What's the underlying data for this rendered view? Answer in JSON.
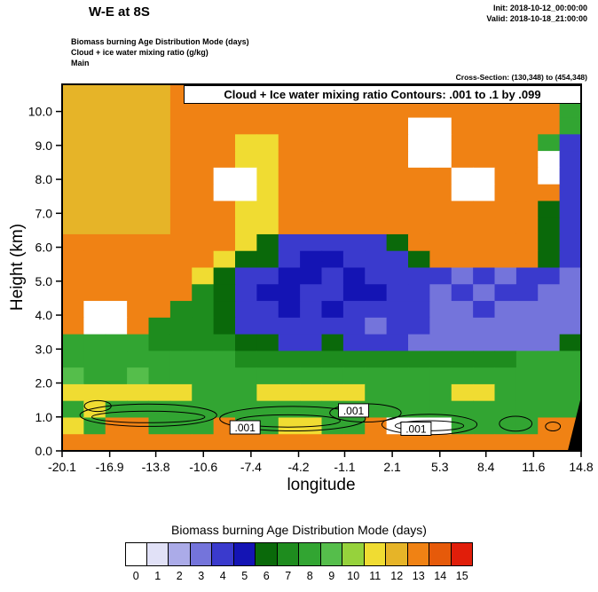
{
  "header": {
    "title": "W-E at 8S",
    "init_line": "Init: 2018-10-12_00:00:00",
    "valid_line": "Valid: 2018-10-18_21:00:00",
    "field_lines": [
      "Biomass burning Age Distribution Mode   (days)",
      "Cloud + ice water mixing ratio   (g/kg)",
      "Main"
    ],
    "cross_section": "Cross-Section: (130,348) to (454,348)"
  },
  "plot": {
    "contour_banner": "Cloud + Ice water mixing ratio Contours: .001 to .1 by .099",
    "xlabel": "longitude",
    "ylabel": "Height (km)"
  },
  "chart_data": {
    "type": "heatmap",
    "title": "W-E at 8S",
    "fill_variable": "Biomass burning Age Distribution Mode (days)",
    "contour_variable": "Cloud + Ice water mixing ratio (g/kg)",
    "contour_levels": ".001 to .1 by .099",
    "xlabel": "longitude",
    "ylabel": "Height (km)",
    "xlim": [
      -20.1,
      14.8
    ],
    "ylim": [
      0,
      10.8
    ],
    "x_ticks": [
      -20.1,
      -16.9,
      -13.8,
      -10.6,
      -7.4,
      -4.2,
      -1.1,
      2.1,
      5.3,
      8.4,
      11.6,
      14.8
    ],
    "y_ticks": [
      0,
      1,
      2,
      3,
      4,
      5,
      6,
      7,
      8,
      9,
      10
    ],
    "levels": [
      0,
      1,
      2,
      3,
      4,
      5,
      6,
      7,
      8,
      9,
      10,
      11,
      12,
      13,
      14,
      15
    ],
    "palette": [
      "#FFFFFF",
      "#E1E1F7",
      "#ABABE8",
      "#7474DB",
      "#3A3ACD",
      "#1414B4",
      "#0A690A",
      "#1E8C1E",
      "#32A532",
      "#55BE4B",
      "#96D23C",
      "#F0DC32",
      "#E6B428",
      "#F08214",
      "#E65A0A",
      "#E11E0A"
    ],
    "grid": {
      "ncols": 24,
      "nrows": 22,
      "order": "top-to-bottom",
      "values": [
        [
          12,
          12,
          12,
          12,
          12,
          13,
          13,
          13,
          13,
          13,
          13,
          13,
          13,
          13,
          13,
          13,
          13,
          13,
          13,
          13,
          13,
          13,
          13,
          13
        ],
        [
          12,
          12,
          12,
          12,
          12,
          13,
          13,
          13,
          13,
          13,
          13,
          13,
          13,
          13,
          13,
          13,
          13,
          13,
          13,
          13,
          13,
          13,
          13,
          8
        ],
        [
          12,
          12,
          12,
          12,
          12,
          13,
          13,
          13,
          13,
          13,
          13,
          13,
          13,
          13,
          13,
          13,
          0,
          0,
          13,
          13,
          13,
          13,
          13,
          8
        ],
        [
          12,
          12,
          12,
          12,
          12,
          13,
          13,
          13,
          11,
          11,
          13,
          13,
          13,
          13,
          13,
          13,
          0,
          0,
          13,
          13,
          13,
          13,
          8,
          4
        ],
        [
          12,
          12,
          12,
          12,
          12,
          13,
          13,
          13,
          11,
          11,
          13,
          13,
          13,
          13,
          13,
          13,
          0,
          0,
          13,
          13,
          13,
          13,
          0,
          4
        ],
        [
          12,
          12,
          12,
          12,
          12,
          13,
          13,
          0,
          0,
          11,
          13,
          13,
          13,
          13,
          13,
          13,
          13,
          13,
          0,
          0,
          13,
          13,
          0,
          4
        ],
        [
          12,
          12,
          12,
          12,
          12,
          13,
          13,
          0,
          0,
          11,
          13,
          13,
          13,
          13,
          13,
          13,
          13,
          13,
          0,
          0,
          13,
          13,
          13,
          4
        ],
        [
          12,
          12,
          12,
          12,
          12,
          13,
          13,
          13,
          11,
          11,
          13,
          13,
          13,
          13,
          13,
          13,
          13,
          13,
          13,
          13,
          13,
          13,
          6,
          4
        ],
        [
          12,
          12,
          12,
          12,
          12,
          13,
          13,
          13,
          11,
          11,
          13,
          13,
          13,
          13,
          13,
          13,
          13,
          13,
          13,
          13,
          13,
          13,
          6,
          4
        ],
        [
          13,
          13,
          13,
          13,
          13,
          13,
          13,
          13,
          11,
          6,
          4,
          4,
          4,
          4,
          4,
          6,
          13,
          13,
          13,
          13,
          13,
          13,
          6,
          4
        ],
        [
          13,
          13,
          13,
          13,
          13,
          13,
          13,
          11,
          6,
          6,
          4,
          5,
          5,
          4,
          4,
          4,
          6,
          13,
          13,
          13,
          13,
          13,
          6,
          4
        ],
        [
          13,
          13,
          13,
          13,
          13,
          13,
          11,
          6,
          4,
          4,
          5,
          5,
          4,
          5,
          4,
          4,
          4,
          4,
          3,
          4,
          3,
          4,
          4,
          3
        ],
        [
          13,
          13,
          13,
          13,
          13,
          13,
          7,
          6,
          4,
          5,
          5,
          4,
          4,
          5,
          5,
          4,
          4,
          3,
          4,
          3,
          4,
          4,
          3,
          3
        ],
        [
          13,
          0,
          0,
          13,
          13,
          7,
          7,
          6,
          4,
          4,
          5,
          4,
          5,
          4,
          4,
          4,
          4,
          3,
          3,
          4,
          3,
          3,
          3,
          3
        ],
        [
          13,
          0,
          0,
          13,
          7,
          7,
          7,
          6,
          4,
          4,
          4,
          4,
          4,
          4,
          3,
          4,
          4,
          3,
          3,
          3,
          3,
          3,
          3,
          3
        ],
        [
          8,
          8,
          8,
          8,
          7,
          7,
          7,
          7,
          6,
          6,
          4,
          4,
          6,
          4,
          4,
          4,
          3,
          3,
          3,
          3,
          3,
          3,
          3,
          6
        ],
        [
          8,
          8,
          8,
          8,
          8,
          8,
          8,
          8,
          7,
          7,
          7,
          7,
          7,
          7,
          7,
          7,
          7,
          7,
          7,
          7,
          7,
          8,
          8,
          8
        ],
        [
          9,
          8,
          8,
          9,
          8,
          8,
          8,
          8,
          8,
          8,
          8,
          8,
          8,
          8,
          8,
          8,
          8,
          8,
          8,
          8,
          8,
          8,
          8,
          8
        ],
        [
          11,
          11,
          11,
          11,
          11,
          11,
          8,
          8,
          8,
          11,
          11,
          11,
          11,
          11,
          8,
          8,
          8,
          8,
          11,
          11,
          8,
          8,
          8,
          8
        ],
        [
          8,
          11,
          8,
          8,
          8,
          8,
          8,
          8,
          8,
          8,
          8,
          8,
          8,
          8,
          8,
          8,
          8,
          8,
          8,
          8,
          8,
          8,
          8,
          8
        ],
        [
          11,
          8,
          13,
          13,
          8,
          8,
          8,
          13,
          8,
          8,
          11,
          11,
          8,
          8,
          13,
          0,
          0,
          0,
          8,
          8,
          8,
          8,
          13,
          13
        ],
        [
          13,
          13,
          13,
          13,
          13,
          13,
          13,
          13,
          13,
          13,
          13,
          13,
          13,
          13,
          13,
          13,
          13,
          13,
          13,
          13,
          13,
          13,
          13,
          13
        ]
      ]
    },
    "terrain_polygon": [
      [
        13.9,
        0
      ],
      [
        14.8,
        1.6
      ],
      [
        14.8,
        0
      ]
    ],
    "cloud_contours": {
      "contour_value_label": ".001",
      "ellipses": [
        {
          "cx": -14.3,
          "cy": 1.05,
          "rx": 4.6,
          "ry": 0.33
        },
        {
          "cx": -14.3,
          "cy": 1.0,
          "rx": 3.8,
          "ry": 0.17
        },
        {
          "cx": -17.7,
          "cy": 1.32,
          "rx": 0.9,
          "ry": 0.16
        },
        {
          "cx": -4.6,
          "cy": 0.95,
          "rx": 4.9,
          "ry": 0.36
        },
        {
          "cx": -4.9,
          "cy": 0.88,
          "rx": 3.5,
          "ry": 0.18
        },
        {
          "cx": 0.3,
          "cy": 1.12,
          "rx": 2.4,
          "ry": 0.27
        },
        {
          "cx": 4.6,
          "cy": 0.78,
          "rx": 3.2,
          "ry": 0.3
        },
        {
          "cx": 4.6,
          "cy": 0.74,
          "rx": 2.3,
          "ry": 0.15
        },
        {
          "cx": 10.4,
          "cy": 0.8,
          "rx": 1.1,
          "ry": 0.22
        },
        {
          "cx": 12.9,
          "cy": 0.72,
          "rx": 0.5,
          "ry": 0.13
        }
      ],
      "labels": [
        {
          "text": ".001",
          "x": -7.8,
          "y": 0.68
        },
        {
          "text": ".001",
          "x": -0.5,
          "y": 1.18
        },
        {
          "text": ".001",
          "x": 3.7,
          "y": 0.64
        }
      ]
    },
    "legend_position": "bottom",
    "grid_lines": false
  },
  "legend": {
    "title": "Biomass burning Age Distribution Mode  (days)",
    "tick_labels": [
      "0",
      "1",
      "2",
      "3",
      "4",
      "5",
      "6",
      "7",
      "8",
      "9",
      "10",
      "11",
      "12",
      "13",
      "14",
      "15"
    ],
    "colors": [
      "#FFFFFF",
      "#E1E1F7",
      "#ABABE8",
      "#7474DB",
      "#3A3ACD",
      "#1414B4",
      "#0A690A",
      "#1E8C1E",
      "#32A532",
      "#55BE4B",
      "#96D23C",
      "#F0DC32",
      "#E6B428",
      "#F08214",
      "#E65A0A",
      "#E11E0A"
    ]
  }
}
